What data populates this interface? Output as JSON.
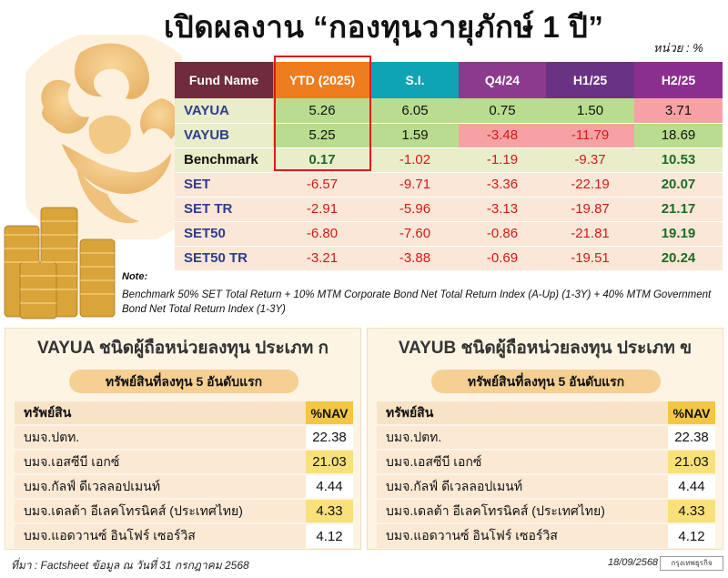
{
  "header": {
    "title": "เปิดผลงาน “กองทุนวายุภักษ์ 1 ปี”",
    "unit": "หน่วย : %"
  },
  "table": {
    "columns": [
      "Fund Name",
      "YTD (2025)",
      "S.I.",
      "Q4/24",
      "H1/25",
      "H2/25"
    ],
    "rows": [
      {
        "name": "VAYUA",
        "values": [
          "5.26",
          "6.05",
          "0.75",
          "1.50",
          "3.71"
        ]
      },
      {
        "name": "VAYUB",
        "values": [
          "5.25",
          "1.59",
          "-3.48",
          "-11.79",
          "18.69"
        ]
      },
      {
        "name": "Benchmark",
        "values": [
          "0.17",
          "-1.02",
          "-1.19",
          "-9.37",
          "10.53"
        ]
      },
      {
        "name": "SET",
        "values": [
          "-6.57",
          "-9.71",
          "-3.36",
          "-22.19",
          "20.07"
        ]
      },
      {
        "name": "SET TR",
        "values": [
          "-2.91",
          "-5.96",
          "-3.13",
          "-19.87",
          "21.17"
        ]
      },
      {
        "name": "SET50",
        "values": [
          "-6.80",
          "-7.60",
          "-0.86",
          "-21.81",
          "19.19"
        ]
      },
      {
        "name": "SET50 TR",
        "values": [
          "-3.21",
          "-3.88",
          "-0.69",
          "-19.51",
          "20.24"
        ]
      }
    ]
  },
  "note": {
    "label": "Note:",
    "text": "Benchmark 50% SET Total Return + 10% MTM Corporate Bond Net Total Return Index (A-Up) (1-3Y) + 40% MTM Government Bond Net Total Return Index (1-3Y)"
  },
  "panels": [
    {
      "title": "VAYUA ชนิดผู้ถือหน่วยลงทุน ประเภท ก",
      "subtitle": "ทรัพย์สินที่ลงทุน 5 อันดับแรก",
      "col_asset": "ทรัพย์สิน",
      "col_nav": "%NAV",
      "rows": [
        {
          "asset": "บมจ.ปตท.",
          "nav": "22.38"
        },
        {
          "asset": "บมจ.เอสซีบี เอกซ์",
          "nav": "21.03"
        },
        {
          "asset": "บมจ.กัลฟ์ ดีเวลลอปเมนท์",
          "nav": "4.44"
        },
        {
          "asset": "บมจ.เดลต้า อีเลคโทรนิคส์ (ประเทศไทย)",
          "nav": "4.33"
        },
        {
          "asset": "บมจ.แอดวานซ์ อินโฟร์ เซอร์วิส",
          "nav": "4.12"
        }
      ]
    },
    {
      "title": "VAYUB ชนิดผู้ถือหน่วยลงทุน ประเภท ข",
      "subtitle": "ทรัพย์สินที่ลงทุน 5 อันดับแรก",
      "col_asset": "ทรัพย์สิน",
      "col_nav": "%NAV",
      "rows": [
        {
          "asset": "บมจ.ปตท.",
          "nav": "22.38"
        },
        {
          "asset": "บมจ.เอสซีบี เอกซ์",
          "nav": "21.03"
        },
        {
          "asset": "บมจ.กัลฟ์ ดีเวลลอปเมนท์",
          "nav": "4.44"
        },
        {
          "asset": "บมจ.เดลต้า อีเลคโทรนิคส์ (ประเทศไทย)",
          "nav": "4.33"
        },
        {
          "asset": "บมจ.แอดวานซ์ อินโฟร์ เซอร์วิส",
          "nav": "4.12"
        }
      ]
    }
  ],
  "footer": {
    "source": "ที่มา : Factsheet ข้อมูล ณ วันที่ 31 กรกฎาคม 2568",
    "date": "18/09/2568",
    "brand": "กรุงเทพธุรกิจ"
  },
  "icons": {
    "emblem": "garuda-emblem-icon",
    "coins": "gold-coins-icon"
  },
  "colors": {
    "ytd_highlight": "#e01b1b",
    "positive_cell": "#b9dc8e",
    "negative_cell": "#f6a2a4",
    "negative_text": "#d11a1a",
    "positive_text": "#1d6b24"
  }
}
